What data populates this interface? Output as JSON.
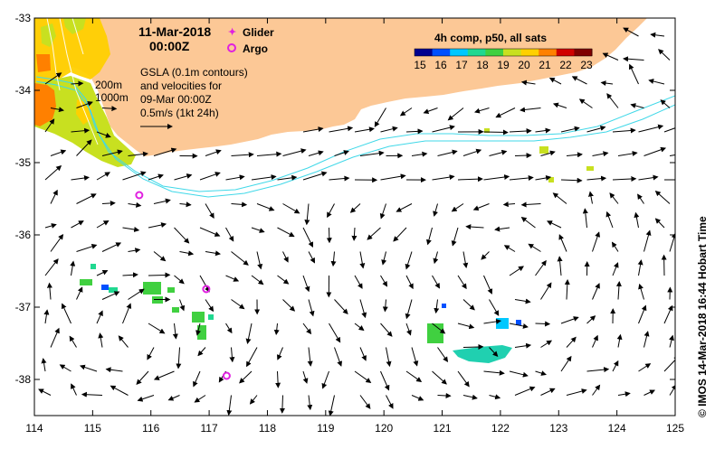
{
  "map": {
    "date_line1": "11-Mar-2018",
    "date_line2": "00:00Z",
    "legend_glider": "Glider",
    "legend_argo": "Argo",
    "isobath_line1": "200m",
    "isobath_line2": "1000m",
    "gsla_line1": "GSLA (0.1m contours)",
    "gsla_line2": "and velocities for",
    "gsla_line3": "09-Mar 00:00Z",
    "velocity_scale": "0.5m/s (1kt 24h)",
    "colorbar_title": "4h comp, p50, all sats",
    "colorbar_ticks": [
      "15",
      "16",
      "17",
      "18",
      "19",
      "20",
      "21",
      "22",
      "23"
    ],
    "colorbar_colors": [
      "#00008f",
      "#0050ff",
      "#00c8ff",
      "#20d890",
      "#40d040",
      "#c8e020",
      "#ffd000",
      "#ff8000",
      "#d00000",
      "#800000"
    ],
    "side_credit": "© IMOS 14-Mar-2018 16:44 Hobart Time",
    "x_ticks": [
      "114",
      "115",
      "116",
      "117",
      "118",
      "119",
      "120",
      "121",
      "122",
      "123",
      "124",
      "125"
    ],
    "y_ticks": [
      "-33",
      "-34",
      "-35",
      "-36",
      "-37",
      "-38"
    ],
    "lon_range": [
      114,
      125
    ],
    "lat_range": [
      -38.5,
      -33
    ],
    "land_color": "#fcc896",
    "isobath_color": "#40d8e8",
    "argo_color": "#e020e0",
    "argo_floats": [
      {
        "lon": 115.8,
        "lat": -35.45
      },
      {
        "lon": 116.95,
        "lat": -36.75
      },
      {
        "lon": 117.3,
        "lat": -37.95
      }
    ]
  }
}
